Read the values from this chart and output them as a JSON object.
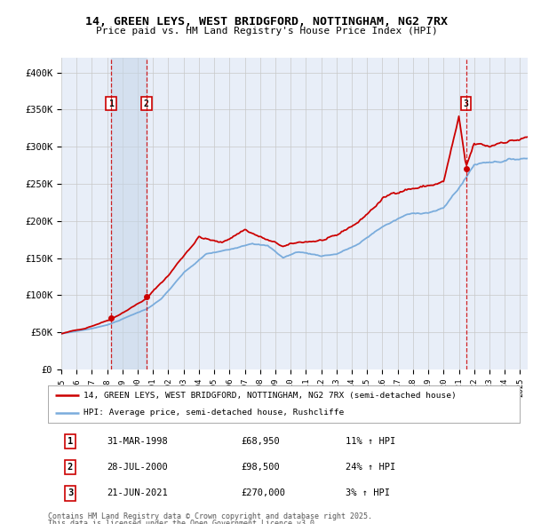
{
  "title_line1": "14, GREEN LEYS, WEST BRIDGFORD, NOTTINGHAM, NG2 7RX",
  "title_line2": "Price paid vs. HM Land Registry's House Price Index (HPI)",
  "legend_label_red": "14, GREEN LEYS, WEST BRIDGFORD, NOTTINGHAM, NG2 7RX (semi-detached house)",
  "legend_label_blue": "HPI: Average price, semi-detached house, Rushcliffe",
  "footer_line1": "Contains HM Land Registry data © Crown copyright and database right 2025.",
  "footer_line2": "This data is licensed under the Open Government Licence v3.0.",
  "transactions": [
    {
      "num": 1,
      "date": "31-MAR-1998",
      "price": 68950,
      "hpi_pct": "11% ↑ HPI",
      "year": 1998.25
    },
    {
      "num": 2,
      "date": "28-JUL-2000",
      "price": 98500,
      "hpi_pct": "24% ↑ HPI",
      "year": 2000.57
    },
    {
      "num": 3,
      "date": "21-JUN-2021",
      "price": 270000,
      "hpi_pct": "3% ↑ HPI",
      "year": 2021.47
    }
  ],
  "ylim": [
    0,
    420000
  ],
  "yticks": [
    0,
    50000,
    100000,
    150000,
    200000,
    250000,
    300000,
    350000,
    400000
  ],
  "ytick_labels": [
    "£0",
    "£50K",
    "£100K",
    "£150K",
    "£200K",
    "£250K",
    "£300K",
    "£350K",
    "£400K"
  ],
  "xlim_start": 1995.0,
  "xlim_end": 2025.5,
  "red_color": "#cc0000",
  "blue_color": "#7aacdc",
  "bg_color": "#e8eef8",
  "highlight_color": "#d0ddf0",
  "grid_color": "#c8c8c8",
  "dashed_color": "#cc0000"
}
